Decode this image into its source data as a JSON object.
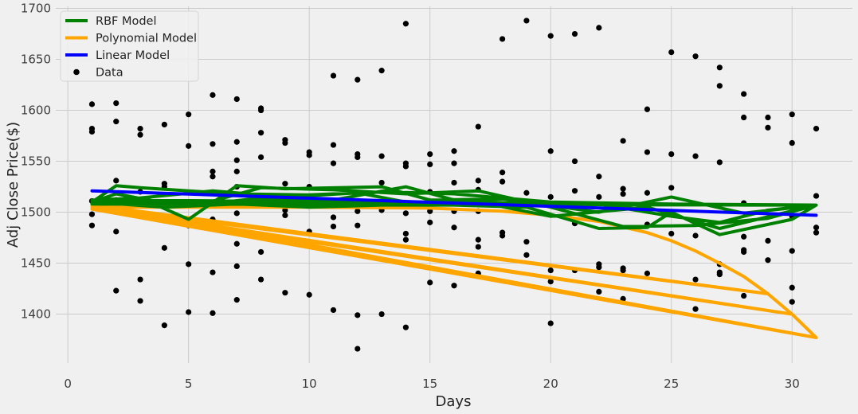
{
  "chart_data": {
    "type": "line",
    "xlabel": "Days",
    "ylabel": "Adj Close Price($)",
    "xlim": [
      -0.5,
      32.5
    ],
    "ylim": [
      1352,
      1702
    ],
    "xticks": [
      0,
      5,
      10,
      15,
      20,
      25,
      30
    ],
    "yticks": [
      1400,
      1450,
      1500,
      1550,
      1600,
      1650,
      1700
    ],
    "grid": true,
    "legend_position": "top-left",
    "legend": [
      {
        "label": "RBF Model",
        "color": "#008000",
        "kind": "line"
      },
      {
        "label": "Polynomial Model",
        "color": "#ffa500",
        "kind": "line"
      },
      {
        "label": "Linear Model",
        "color": "#0000ff",
        "kind": "line"
      },
      {
        "label": "Data",
        "color": "#000000",
        "kind": "scatter"
      }
    ],
    "series": [
      {
        "name": "Data",
        "kind": "scatter",
        "color": "#000000",
        "points": [
          [
            1,
            1606
          ],
          [
            1,
            1582
          ],
          [
            1,
            1579
          ],
          [
            1,
            1511
          ],
          [
            1,
            1498
          ],
          [
            1,
            1487
          ],
          [
            2,
            1607
          ],
          [
            2,
            1589
          ],
          [
            2,
            1531
          ],
          [
            2,
            1512
          ],
          [
            2,
            1481
          ],
          [
            2,
            1423
          ],
          [
            3,
            1582
          ],
          [
            3,
            1576
          ],
          [
            3,
            1520
          ],
          [
            3,
            1434
          ],
          [
            3,
            1413
          ],
          [
            4,
            1586
          ],
          [
            4,
            1528
          ],
          [
            4,
            1525
          ],
          [
            4,
            1465
          ],
          [
            4,
            1389
          ],
          [
            5,
            1596
          ],
          [
            5,
            1565
          ],
          [
            5,
            1487
          ],
          [
            5,
            1449
          ],
          [
            5,
            1402
          ],
          [
            6,
            1615
          ],
          [
            6,
            1567
          ],
          [
            6,
            1540
          ],
          [
            6,
            1535
          ],
          [
            6,
            1493
          ],
          [
            6,
            1441
          ],
          [
            6,
            1401
          ],
          [
            7,
            1611
          ],
          [
            7,
            1569
          ],
          [
            7,
            1551
          ],
          [
            7,
            1540
          ],
          [
            7,
            1525
          ],
          [
            7,
            1499
          ],
          [
            7,
            1469
          ],
          [
            7,
            1447
          ],
          [
            7,
            1414
          ],
          [
            8,
            1602
          ],
          [
            8,
            1600
          ],
          [
            8,
            1578
          ],
          [
            8,
            1554
          ],
          [
            8,
            1509
          ],
          [
            8,
            1461
          ],
          [
            8,
            1434
          ],
          [
            9,
            1571
          ],
          [
            9,
            1568
          ],
          [
            9,
            1528
          ],
          [
            9,
            1502
          ],
          [
            9,
            1497
          ],
          [
            9,
            1421
          ],
          [
            10,
            1559
          ],
          [
            10,
            1556
          ],
          [
            10,
            1525
          ],
          [
            10,
            1481
          ],
          [
            10,
            1419
          ],
          [
            11,
            1634
          ],
          [
            11,
            1566
          ],
          [
            11,
            1548
          ],
          [
            11,
            1495
          ],
          [
            11,
            1486
          ],
          [
            11,
            1404
          ],
          [
            12,
            1630
          ],
          [
            12,
            1557
          ],
          [
            12,
            1554
          ],
          [
            12,
            1501
          ],
          [
            12,
            1487
          ],
          [
            12,
            1399
          ],
          [
            12,
            1366
          ],
          [
            13,
            1639
          ],
          [
            13,
            1555
          ],
          [
            13,
            1529
          ],
          [
            13,
            1502
          ],
          [
            13,
            1400
          ],
          [
            14,
            1685
          ],
          [
            14,
            1548
          ],
          [
            14,
            1545
          ],
          [
            14,
            1499
          ],
          [
            14,
            1479
          ],
          [
            14,
            1473
          ],
          [
            14,
            1387
          ],
          [
            15,
            1557
          ],
          [
            15,
            1547
          ],
          [
            15,
            1520
          ],
          [
            15,
            1501
          ],
          [
            15,
            1490
          ],
          [
            15,
            1431
          ],
          [
            16,
            1560
          ],
          [
            16,
            1548
          ],
          [
            16,
            1529
          ],
          [
            16,
            1501
          ],
          [
            16,
            1485
          ],
          [
            16,
            1428
          ],
          [
            17,
            1584
          ],
          [
            17,
            1531
          ],
          [
            17,
            1522
          ],
          [
            17,
            1501
          ],
          [
            17,
            1473
          ],
          [
            17,
            1466
          ],
          [
            17,
            1440
          ],
          [
            18,
            1670
          ],
          [
            18,
            1539
          ],
          [
            18,
            1530
          ],
          [
            18,
            1480
          ],
          [
            18,
            1477
          ],
          [
            19,
            1688
          ],
          [
            19,
            1519
          ],
          [
            19,
            1471
          ],
          [
            19,
            1458
          ],
          [
            20,
            1673
          ],
          [
            20,
            1560
          ],
          [
            20,
            1515
          ],
          [
            20,
            1443
          ],
          [
            20,
            1432
          ],
          [
            20,
            1391
          ],
          [
            21,
            1675
          ],
          [
            21,
            1550
          ],
          [
            21,
            1521
          ],
          [
            21,
            1489
          ],
          [
            21,
            1443
          ],
          [
            22,
            1681
          ],
          [
            22,
            1535
          ],
          [
            22,
            1515
          ],
          [
            22,
            1449
          ],
          [
            22,
            1446
          ],
          [
            22,
            1422
          ],
          [
            23,
            1570
          ],
          [
            23,
            1523
          ],
          [
            23,
            1518
          ],
          [
            23,
            1445
          ],
          [
            23,
            1443
          ],
          [
            23,
            1415
          ],
          [
            24,
            1601
          ],
          [
            24,
            1559
          ],
          [
            24,
            1519
          ],
          [
            24,
            1488
          ],
          [
            24,
            1440
          ],
          [
            25,
            1657
          ],
          [
            25,
            1557
          ],
          [
            25,
            1524
          ],
          [
            25,
            1479
          ],
          [
            26,
            1653
          ],
          [
            26,
            1555
          ],
          [
            26,
            1477
          ],
          [
            26,
            1434
          ],
          [
            26,
            1405
          ],
          [
            27,
            1642
          ],
          [
            27,
            1624
          ],
          [
            27,
            1549
          ],
          [
            27,
            1449
          ],
          [
            27,
            1441
          ],
          [
            27,
            1439
          ],
          [
            28,
            1616
          ],
          [
            28,
            1593
          ],
          [
            28,
            1509
          ],
          [
            28,
            1476
          ],
          [
            28,
            1463
          ],
          [
            28,
            1461
          ],
          [
            28,
            1418
          ],
          [
            29,
            1593
          ],
          [
            29,
            1583
          ],
          [
            29,
            1472
          ],
          [
            29,
            1453
          ],
          [
            30,
            1596
          ],
          [
            30,
            1568
          ],
          [
            30,
            1496
          ],
          [
            30,
            1462
          ],
          [
            30,
            1426
          ],
          [
            30,
            1412
          ],
          [
            31,
            1582
          ],
          [
            31,
            1516
          ],
          [
            31,
            1485
          ],
          [
            31,
            1480
          ]
        ]
      },
      {
        "name": "RBF Model",
        "kind": "line",
        "color": "#008000",
        "points": [
          [
            1,
            1510
          ],
          [
            2,
            1526
          ],
          [
            3,
            1524
          ],
          [
            5,
            1521
          ],
          [
            7,
            1518
          ],
          [
            10,
            1517
          ],
          [
            13,
            1520
          ],
          [
            16,
            1518
          ],
          [
            20,
            1510
          ],
          [
            25,
            1508
          ],
          [
            28,
            1507
          ],
          [
            31,
            1507
          ],
          [
            1,
            1512
          ],
          [
            3,
            1514
          ],
          [
            5,
            1493
          ],
          [
            7,
            1526
          ],
          [
            9,
            1523
          ],
          [
            13,
            1525
          ],
          [
            15,
            1512
          ],
          [
            18,
            1513
          ],
          [
            22,
            1500
          ],
          [
            25,
            1515
          ],
          [
            28,
            1499
          ],
          [
            31,
            1507
          ],
          [
            1,
            1510
          ],
          [
            2,
            1518
          ],
          [
            4,
            1509
          ],
          [
            6,
            1511
          ],
          [
            8,
            1524
          ],
          [
            11,
            1522
          ],
          [
            14,
            1518
          ],
          [
            17,
            1521
          ],
          [
            20,
            1505
          ],
          [
            23,
            1486
          ],
          [
            26,
            1487
          ],
          [
            29,
            1494
          ],
          [
            31,
            1507
          ],
          [
            1,
            1510
          ],
          [
            4,
            1505
          ],
          [
            7,
            1508
          ],
          [
            10,
            1505
          ],
          [
            13,
            1507
          ],
          [
            16,
            1507
          ],
          [
            19,
            1505
          ],
          [
            22,
            1484
          ],
          [
            24,
            1485
          ],
          [
            25,
            1500
          ],
          [
            27,
            1478
          ],
          [
            30,
            1493
          ],
          [
            31,
            1507
          ],
          [
            1,
            1508
          ],
          [
            3,
            1514
          ],
          [
            6,
            1521
          ],
          [
            9,
            1515
          ],
          [
            12,
            1519
          ],
          [
            14,
            1510
          ],
          [
            17,
            1510
          ],
          [
            20,
            1496
          ],
          [
            24,
            1505
          ],
          [
            27,
            1484
          ],
          [
            31,
            1507
          ],
          [
            1,
            1511
          ],
          [
            5,
            1506
          ],
          [
            8,
            1514
          ],
          [
            11,
            1512
          ],
          [
            14,
            1525
          ],
          [
            16,
            1512
          ],
          [
            19,
            1508
          ],
          [
            22,
            1508
          ],
          [
            25,
            1496
          ],
          [
            27,
            1490
          ],
          [
            29,
            1502
          ],
          [
            31,
            1507
          ]
        ]
      },
      {
        "name": "Polynomial Model",
        "kind": "line",
        "color": "#ffa500",
        "points": [
          [
            1,
            1505
          ],
          [
            5,
            1505
          ],
          [
            10,
            1505
          ],
          [
            15,
            1504
          ],
          [
            18,
            1501
          ],
          [
            20,
            1497
          ],
          [
            22,
            1491
          ],
          [
            24,
            1480
          ],
          [
            25,
            1472
          ],
          [
            26,
            1462
          ],
          [
            27,
            1450
          ],
          [
            28,
            1437
          ],
          [
            29,
            1420
          ],
          [
            30,
            1400
          ],
          [
            31,
            1377
          ],
          [
            1,
            1505
          ],
          [
            31,
            1377
          ],
          [
            1,
            1505
          ],
          [
            30,
            1400
          ],
          [
            1,
            1505
          ],
          [
            29,
            1420
          ],
          [
            1,
            1507
          ],
          [
            31,
            1377
          ],
          [
            1,
            1503
          ],
          [
            30,
            1400
          ]
        ]
      },
      {
        "name": "Linear Model",
        "kind": "line",
        "color": "#0000ff",
        "points": [
          [
            1,
            1521
          ],
          [
            31,
            1497
          ]
        ]
      }
    ]
  }
}
